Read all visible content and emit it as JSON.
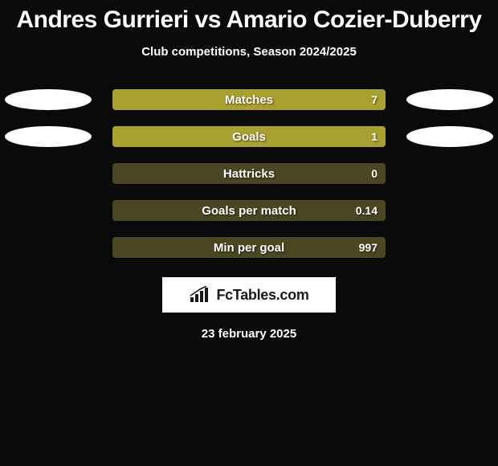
{
  "title": "Andres Gurrieri vs Amario Cozier-Duberry",
  "subtitle": "Club competitions, Season 2024/2025",
  "date": "23 february 2025",
  "logo_text": "FcTables.com",
  "background_color": "#0a0a0a",
  "colors": {
    "bar_empty": "#4a4722",
    "bar_fill": "#a8a030",
    "ellipse": "#ffffff",
    "text": "#ffffff"
  },
  "rows": [
    {
      "label": "Matches",
      "value": "7",
      "fill_pct": 100,
      "show_left_ellipse": true,
      "show_right_ellipse": true
    },
    {
      "label": "Goals",
      "value": "1",
      "fill_pct": 100,
      "show_left_ellipse": true,
      "show_right_ellipse": true
    },
    {
      "label": "Hattricks",
      "value": "0",
      "fill_pct": 0,
      "show_left_ellipse": false,
      "show_right_ellipse": false
    },
    {
      "label": "Goals per match",
      "value": "0.14",
      "fill_pct": 0,
      "show_left_ellipse": false,
      "show_right_ellipse": false
    },
    {
      "label": "Min per goal",
      "value": "997",
      "fill_pct": 0,
      "show_left_ellipse": false,
      "show_right_ellipse": false
    }
  ]
}
